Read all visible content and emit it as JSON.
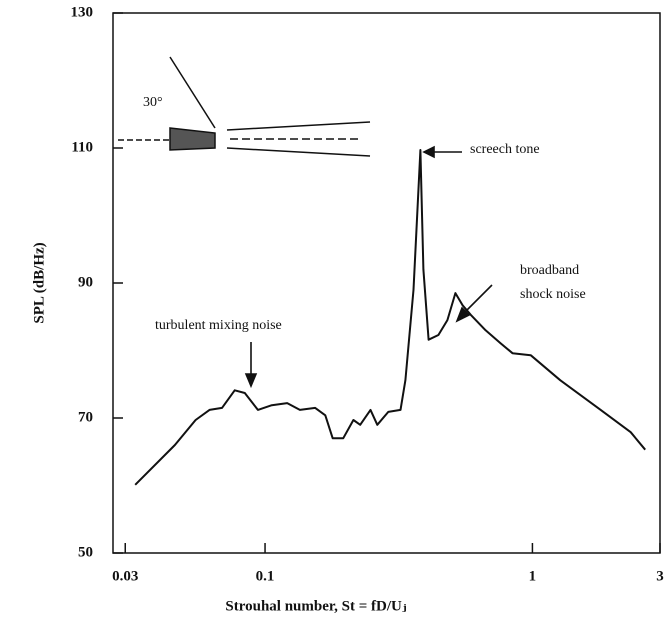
{
  "chart_data": {
    "type": "line",
    "x_label": "Strouhal number,  St = fD/Uⱼ",
    "y_label": "SPL  (dB/Hz)",
    "log_x": true,
    "color": "#111111",
    "x": [
      0.0327,
      0.046,
      0.055,
      0.062,
      0.069,
      0.077,
      0.084,
      0.094,
      0.106,
      0.121,
      0.135,
      0.154,
      0.168,
      0.179,
      0.196,
      0.214,
      0.227,
      0.248,
      0.263,
      0.289,
      0.321,
      0.335,
      0.359,
      0.381,
      0.391,
      0.409,
      0.445,
      0.481,
      0.515,
      0.548,
      0.587,
      0.668,
      0.759,
      0.842,
      0.985,
      1.27,
      1.8,
      2.33,
      2.64
    ],
    "values": [
      60.1,
      66,
      69.7,
      71.2,
      71.5,
      74.1,
      73.7,
      71.2,
      71.9,
      72.2,
      71.2,
      71.5,
      70.4,
      67,
      67,
      69.7,
      69,
      71.2,
      69,
      70.9,
      71.2,
      75.6,
      89,
      109.7,
      92,
      81.6,
      82.3,
      84.5,
      88.5,
      86.7,
      85.3,
      83,
      81.1,
      79.6,
      79.3,
      75.6,
      71.2,
      67.9,
      65.3
    ],
    "xlim": [
      0.027,
      3
    ],
    "ylim": [
      50,
      130
    ],
    "xticks": [
      0.03,
      0.1,
      1,
      3
    ],
    "yticks": [
      50,
      70,
      90,
      110,
      130
    ],
    "annotations": [
      "turbulent mixing noise",
      "screech tone",
      "broadband",
      "shock noise",
      "30°"
    ]
  }
}
